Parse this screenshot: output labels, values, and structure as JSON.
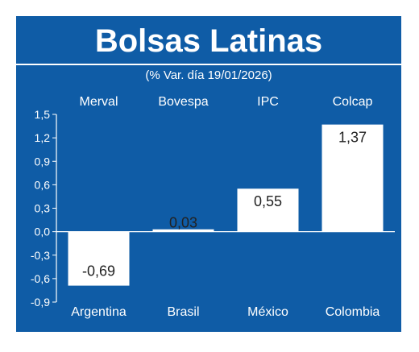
{
  "colors": {
    "background": "#0f5ca6",
    "bar": "#ffffff",
    "text": "#ffffff",
    "title_frame": "#ffffff",
    "gridline": "#8fb6dc"
  },
  "chart_data": {
    "type": "bar",
    "title": "Bolsas Latinas",
    "subtitle": "(% Var. día 19/01/2026)",
    "categories": [
      "Argentina",
      "Brasil",
      "México",
      "Colombia"
    ],
    "indices": [
      "Merval",
      "Bovespa",
      "IPC",
      "Colcap"
    ],
    "values": [
      -0.69,
      0.03,
      0.55,
      1.37
    ],
    "data_labels": [
      "-0,69",
      "0,03",
      "0,55",
      "1,37"
    ],
    "ylim": [
      -0.9,
      1.5
    ],
    "yticks": [
      "1,5",
      "1,2",
      "0,9",
      "0,6",
      "0,3",
      "0,0",
      "-0,3",
      "-0,6",
      "-0,9"
    ],
    "ytick_values": [
      1.5,
      1.2,
      0.9,
      0.6,
      0.3,
      0.0,
      -0.3,
      -0.6,
      -0.9
    ],
    "grid": false,
    "legend": "none"
  }
}
